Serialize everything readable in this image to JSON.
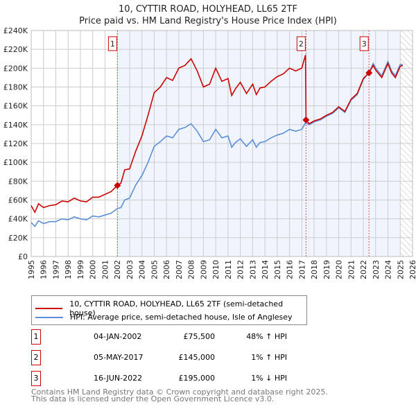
{
  "chart_data": {
    "type": "line",
    "title": "10, CYTTIR ROAD, HOLYHEAD, LL65 2TF",
    "subtitle": "Price paid vs. HM Land Registry's House Price Index (HPI)",
    "xlim": [
      1995,
      2026
    ],
    "ylim": [
      0,
      240000
    ],
    "x_ticks": [
      "1995",
      "1996",
      "1997",
      "1998",
      "1999",
      "2000",
      "2001",
      "2002",
      "2003",
      "2004",
      "2005",
      "2006",
      "2007",
      "2008",
      "2009",
      "2010",
      "2011",
      "2012",
      "2013",
      "2014",
      "2015",
      "2016",
      "2017",
      "2018",
      "2019",
      "2020",
      "2021",
      "2022",
      "2023",
      "2024",
      "2025",
      "2026"
    ],
    "y_ticks": [
      {
        "v": 0,
        "label": "£0"
      },
      {
        "v": 20000,
        "label": "£20K"
      },
      {
        "v": 40000,
        "label": "£40K"
      },
      {
        "v": 60000,
        "label": "£60K"
      },
      {
        "v": 80000,
        "label": "£80K"
      },
      {
        "v": 100000,
        "label": "£100K"
      },
      {
        "v": 120000,
        "label": "£120K"
      },
      {
        "v": 140000,
        "label": "£140K"
      },
      {
        "v": 160000,
        "label": "£160K"
      },
      {
        "v": 180000,
        "label": "£180K"
      },
      {
        "v": 200000,
        "label": "£200K"
      },
      {
        "v": 220000,
        "label": "£220K"
      },
      {
        "v": 240000,
        "label": "£240K"
      }
    ],
    "grid": true,
    "shaded_range": [
      2002.01,
      2025.0
    ],
    "forecast_hatch_from": 2025.0,
    "series": [
      {
        "name": "10, CYTTIR ROAD, HOLYHEAD, LL65 2TF (semi-detached house)",
        "color": "#cc0000",
        "x": [
          1995,
          1995.3,
          1995.6,
          1996,
          1996.5,
          1997,
          1997.5,
          1998,
          1998.5,
          1999,
          1999.5,
          2000,
          2000.5,
          2001,
          2001.5,
          2002.01,
          2002.3,
          2002.6,
          2003,
          2003.5,
          2004,
          2004.5,
          2005,
          2005.5,
          2006,
          2006.5,
          2007,
          2007.5,
          2008,
          2008.5,
          2009,
          2009.5,
          2010,
          2010.5,
          2011,
          2011.3,
          2011.6,
          2012,
          2012.5,
          2013,
          2013.3,
          2013.6,
          2014,
          2014.5,
          2015,
          2015.5,
          2016,
          2016.5,
          2017,
          2017.3,
          2017.34,
          2017.6,
          2018,
          2018.5,
          2019,
          2019.5,
          2020,
          2020.5,
          2021,
          2021.5,
          2022,
          2022.46,
          2022.8,
          2023,
          2023.5,
          2024,
          2024.3,
          2024.6,
          2025,
          2025.2
        ],
        "y": [
          54000,
          47000,
          56000,
          52000,
          54000,
          55000,
          59000,
          58000,
          62000,
          59000,
          58000,
          63000,
          63000,
          66000,
          69000,
          75500,
          78000,
          92000,
          93000,
          112000,
          128000,
          150000,
          174000,
          180000,
          190000,
          187000,
          200000,
          203000,
          210000,
          197000,
          180000,
          183000,
          200000,
          186000,
          189000,
          171000,
          178000,
          185000,
          173000,
          183000,
          172000,
          179000,
          180000,
          186000,
          191000,
          194000,
          200000,
          197000,
          200000,
          214000,
          145000,
          141000,
          144000,
          146000,
          150000,
          153000,
          159000,
          154000,
          167000,
          173000,
          189000,
          195000,
          203000,
          198000,
          190000,
          205000,
          195000,
          190000,
          202000,
          203000
        ]
      },
      {
        "name": "HPI: Average price, semi-detached house, Isle of Anglesey",
        "color": "#5b8fd6",
        "x": [
          1995,
          1995.3,
          1995.6,
          1996,
          1996.5,
          1997,
          1997.5,
          1998,
          1998.5,
          1999,
          1999.5,
          2000,
          2000.5,
          2001,
          2001.5,
          2002.01,
          2002.3,
          2002.6,
          2003,
          2003.5,
          2004,
          2004.5,
          2005,
          2005.5,
          2006,
          2006.5,
          2007,
          2007.5,
          2008,
          2008.5,
          2009,
          2009.5,
          2010,
          2010.5,
          2011,
          2011.3,
          2011.6,
          2012,
          2012.5,
          2013,
          2013.3,
          2013.6,
          2014,
          2014.5,
          2015,
          2015.5,
          2016,
          2016.5,
          2017,
          2017.3,
          2017.6,
          2018,
          2018.5,
          2019,
          2019.5,
          2020,
          2020.5,
          2021,
          2021.5,
          2022,
          2022.5,
          2022.8,
          2023,
          2023.5,
          2024,
          2024.3,
          2024.6,
          2025,
          2025.2
        ],
        "y": [
          36000,
          32000,
          38000,
          35000,
          37000,
          37000,
          40000,
          39000,
          42000,
          40000,
          39000,
          43000,
          42000,
          44000,
          46000,
          51000,
          52000,
          60000,
          62000,
          76000,
          86000,
          100000,
          117000,
          122000,
          128000,
          126000,
          135000,
          137000,
          141000,
          133000,
          122000,
          124000,
          135000,
          126000,
          128000,
          116000,
          121000,
          125000,
          117000,
          124000,
          116000,
          121000,
          122000,
          126000,
          129000,
          131000,
          135000,
          133000,
          135000,
          142000,
          140000,
          143000,
          145000,
          149000,
          152000,
          158000,
          153000,
          166000,
          172000,
          188000,
          196000,
          205000,
          200000,
          192000,
          207000,
          197000,
          192000,
          204000,
          204000
        ]
      }
    ],
    "sales": [
      {
        "num": "1",
        "x": 2002.01,
        "y": 75500,
        "date": "04-JAN-2002",
        "price": "£75,500",
        "hpi": "48% ↑ HPI"
      },
      {
        "num": "2",
        "x": 2017.34,
        "y": 145000,
        "date": "05-MAY-2017",
        "price": "£145,000",
        "hpi": "1% ↑ HPI"
      },
      {
        "num": "3",
        "x": 2022.46,
        "y": 195000,
        "date": "16-JUN-2022",
        "price": "£195,000",
        "hpi": "1% ↓ HPI"
      }
    ]
  },
  "legend": {
    "red": "10, CYTTIR ROAD, HOLYHEAD, LL65 2TF (semi-detached house)",
    "blue": "HPI: Average price, semi-detached house, Isle of Anglesey"
  },
  "footer": {
    "line1": "Contains HM Land Registry data © Crown copyright and database right 2025.",
    "line2": "This data is licensed under the Open Government Licence v3.0."
  }
}
